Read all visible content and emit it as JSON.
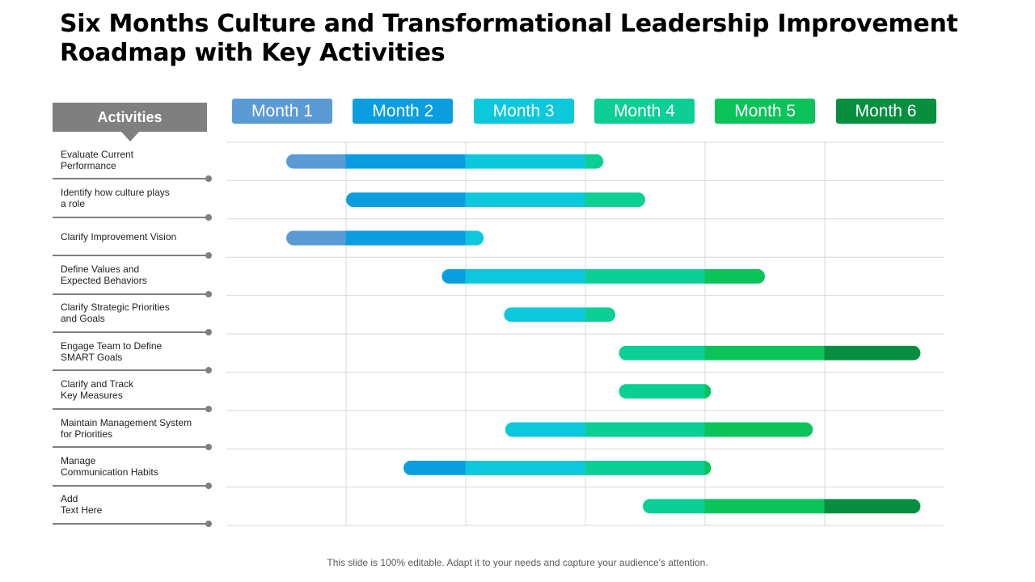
{
  "title": "Six Months Culture and Transformational Leadership Improvement Roadmap with Key Activities",
  "activities_header": "Activities",
  "footer_note": "This slide is 100% editable. Adapt it to your needs and capture your audience's attention.",
  "colors": {
    "header_gray": "#7f7f7f",
    "grid": "#d9d9d9",
    "month_1": "#5b9bd5",
    "month_2": "#0a9ee0",
    "month_3": "#0cc8dc",
    "month_4": "#0bcf94",
    "month_5": "#0ac45a",
    "month_6": "#078f40"
  },
  "chart_data": {
    "type": "gantt",
    "unit": "month",
    "xlim": [
      0,
      6
    ],
    "grid": true,
    "categories": [
      "Month 1",
      "Month 2",
      "Month 3",
      "Month 4",
      "Month 5",
      "Month 6"
    ],
    "tasks": [
      {
        "name": "Evaluate Current\nPerformance",
        "start": 0.5,
        "end": 3.15
      },
      {
        "name": "Identify how culture plays\na role",
        "start": 1.0,
        "end": 3.5
      },
      {
        "name": "Clarify Improvement Vision",
        "start": 0.5,
        "end": 2.15
      },
      {
        "name": "Define Values and\nExpected Behaviors",
        "start": 1.8,
        "end": 4.5
      },
      {
        "name": "Clarify Strategic Priorities\nand Goals",
        "start": 2.32,
        "end": 3.25
      },
      {
        "name": "Engage Team to Define\nSMART Goals",
        "start": 3.28,
        "end": 5.8
      },
      {
        "name": "Clarify and Track\nKey Measures",
        "start": 3.28,
        "end": 4.05
      },
      {
        "name": "Maintain Management System\nfor Priorities",
        "start": 2.33,
        "end": 4.9
      },
      {
        "name": "Manage\nCommunication Habits",
        "start": 1.48,
        "end": 4.05
      },
      {
        "name": "Add\nText Here",
        "start": 3.48,
        "end": 5.8
      }
    ]
  }
}
